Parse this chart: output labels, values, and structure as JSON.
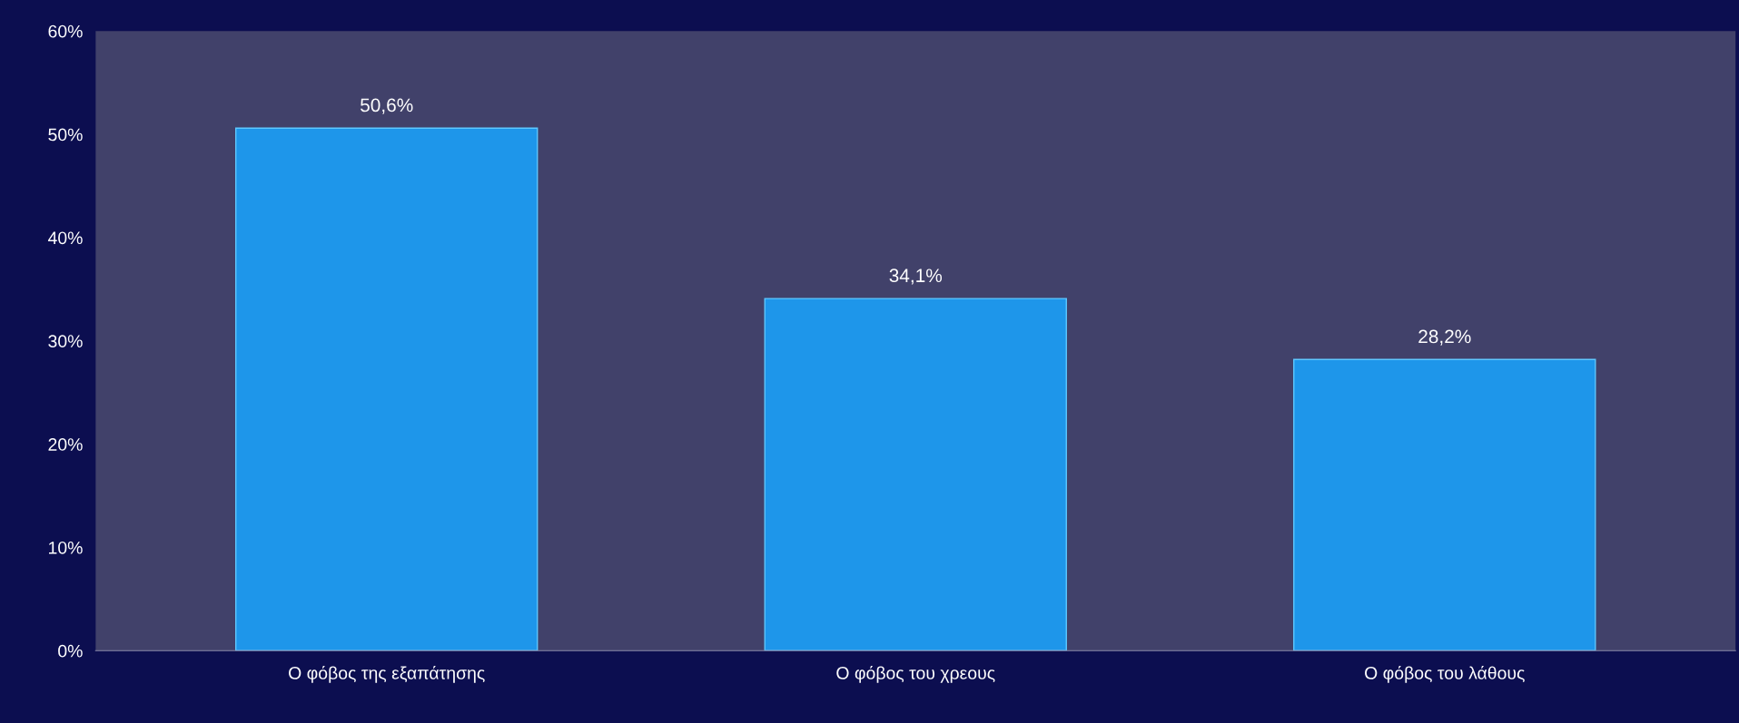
{
  "chart_data": {
    "type": "bar",
    "categories": [
      "Ο φόβος της εξαπάτησης",
      "Ο φόβος του χρεους",
      "Ο φόβος του λάθους"
    ],
    "values": [
      50.6,
      34.1,
      28.2
    ],
    "value_labels": [
      "50,6%",
      "34,1%",
      "28,2%"
    ],
    "color": "#1e96ea",
    "ylim": [
      0,
      60
    ],
    "yticks": [
      {
        "value": 0,
        "label": "0%"
      },
      {
        "value": 10,
        "label": "10%"
      },
      {
        "value": 20,
        "label": "20%"
      },
      {
        "value": 30,
        "label": "30%"
      },
      {
        "value": 40,
        "label": "40%"
      },
      {
        "value": 50,
        "label": "50%"
      },
      {
        "value": 60,
        "label": "60%"
      }
    ],
    "grid": false,
    "legend": false
  }
}
